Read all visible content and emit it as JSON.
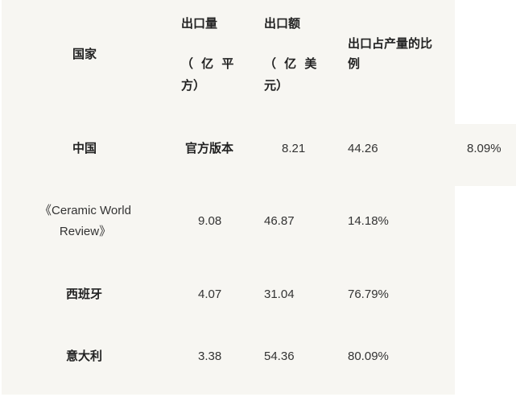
{
  "header": {
    "country": "国家",
    "volume_l1": "出口量",
    "volume_l2": "（ 亿 平",
    "volume_l3": "方）",
    "value_l1": "出口额",
    "value_l2": "（ 亿 美",
    "value_l3": "元）",
    "ratio_l1": "出口占产量的比",
    "ratio_l2": "例"
  },
  "rows": [
    {
      "country": "中国",
      "c2": "官方版本",
      "c3": "8.21",
      "c4": "44.26",
      "c5": "8.09%"
    },
    {
      "country_l1": "《Ceramic World",
      "country_l2": "Review》",
      "c2": "9.08",
      "c3": "46.87",
      "c4": "14.18%"
    },
    {
      "country": "西班牙",
      "c2": "4.07",
      "c3": "31.04",
      "c4": "76.79%"
    },
    {
      "country": "意大利",
      "c2": "3.38",
      "c3": "54.36",
      "c4": "80.09%"
    }
  ]
}
